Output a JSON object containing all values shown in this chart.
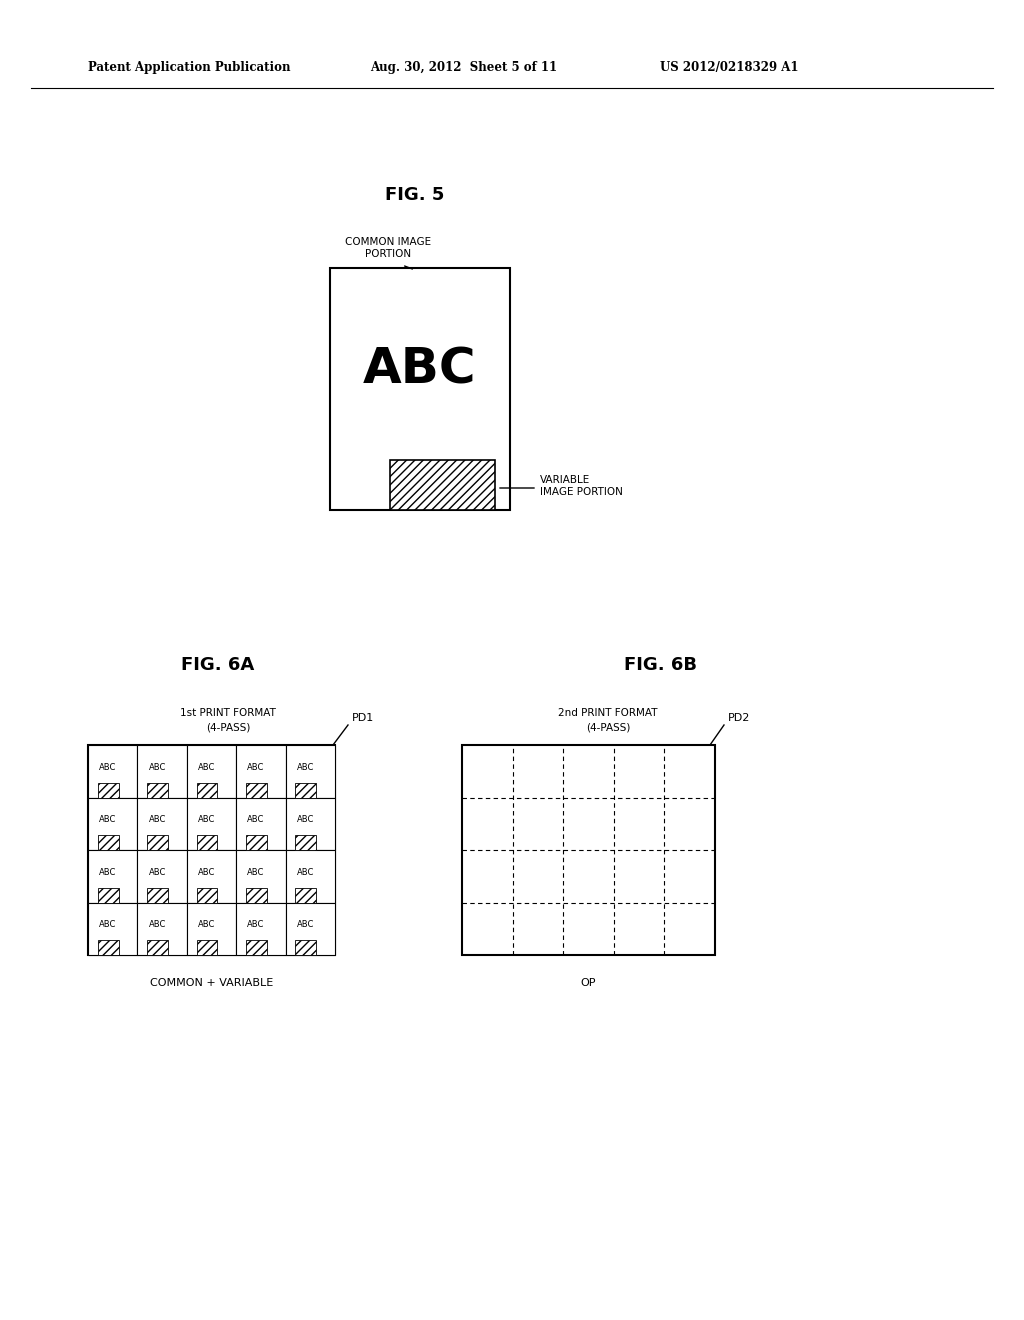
{
  "bg_color": "#ffffff",
  "header_left": "Patent Application Publication",
  "header_mid": "Aug. 30, 2012  Sheet 5 of 11",
  "header_right": "US 2012/0218329 A1",
  "fig5_title": "FIG. 5",
  "fig5_abc_text": "ABC",
  "fig5_common_label": "COMMON IMAGE\nPORTION",
  "fig5_variable_label": "VARIABLE\nIMAGE PORTION",
  "fig6a_title": "FIG. 6A",
  "fig6b_title": "FIG. 6B",
  "fig6a_label1": "1st PRINT FORMAT",
  "fig6a_label2": "(4-PASS)",
  "fig6a_pd": "PD1",
  "fig6b_label1": "2nd PRINT FORMAT",
  "fig6b_label2": "(4-PASS)",
  "fig6b_pd": "PD2",
  "fig6a_caption": "COMMON + VARIABLE",
  "fig6b_caption": "OP"
}
